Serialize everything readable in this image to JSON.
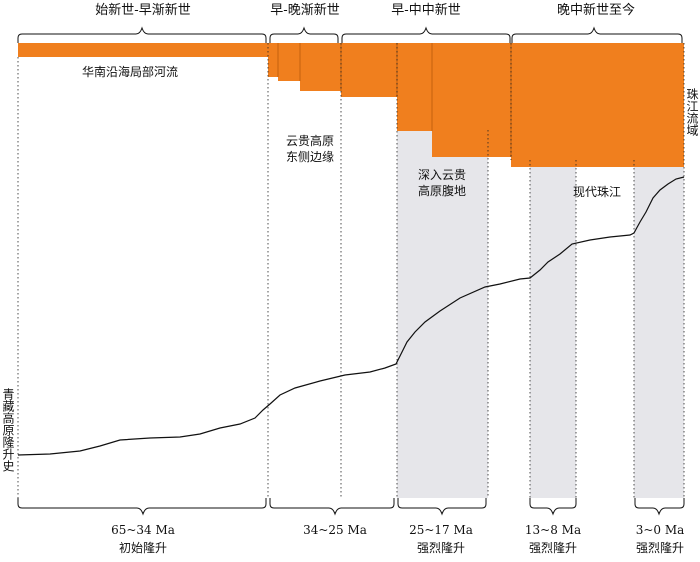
{
  "colors": {
    "orange": "#f07f1e",
    "shade": "#e6e6ea",
    "line": "#111111"
  },
  "epochs": [
    "始新世-早渐新世",
    "早-晚渐新世",
    "早-中中新世",
    "晚中新世至今"
  ],
  "regions": {
    "coastal": "华南沿海局部河流",
    "east_yunnan_guizhou": [
      "云贵高原",
      "东侧边缘"
    ],
    "deep_yunnan_guizhou": [
      "深入云贵",
      "高原腹地"
    ],
    "modern_pearl": "现代珠江",
    "pearl_basin": "珠江流域"
  },
  "curve_label": "青藏高原隆升史",
  "phases": [
    {
      "range": "65~34 Ma",
      "label": "初始隆升"
    },
    {
      "range": "34~25 Ma",
      "label": ""
    },
    {
      "range": "25~17 Ma",
      "label": "强烈隆升"
    },
    {
      "range": "13~8 Ma",
      "label": "强烈隆升"
    },
    {
      "range": "3~0 Ma",
      "label": "强烈隆升"
    }
  ]
}
